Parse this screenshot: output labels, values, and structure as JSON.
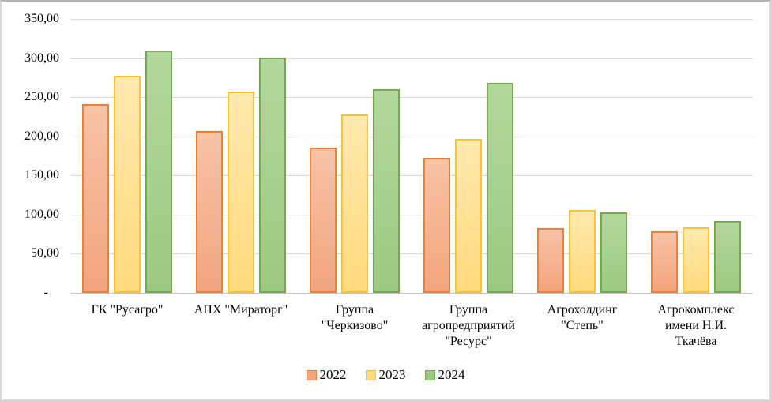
{
  "chart_data": {
    "type": "bar",
    "title": "",
    "xlabel": "",
    "ylabel": "",
    "categories": [
      "ГК \"Русагро\"",
      "АПХ \"Мираторг\"",
      "Группа \"Черкизово\"",
      "Группа агропредприятий \"Ресурс\"",
      "Агрохолдинг \"Степь\"",
      "Агрокомплекс имени Н.И. Ткачёва"
    ],
    "series": [
      {
        "name": "2022",
        "values": [
          241,
          207,
          186,
          172,
          83,
          79
        ],
        "border": "#E8813A",
        "fill_top": "#F8C2A6",
        "fill_bottom": "#F2A57E"
      },
      {
        "name": "2023",
        "values": [
          277,
          257,
          228,
          197,
          106,
          84
        ],
        "border": "#FCC32A",
        "fill_top": "#FFE9AE",
        "fill_bottom": "#FFDA7E"
      },
      {
        "name": "2024",
        "values": [
          310,
          301,
          260,
          268,
          103,
          92
        ],
        "border": "#74AA4F",
        "fill_top": "#B3D79C",
        "fill_bottom": "#9CC981"
      }
    ],
    "ylim": [
      0,
      350
    ],
    "ytick_step": 50,
    "ytick_labels": [
      "-",
      "50,00",
      "100,00",
      "150,00",
      "200,00",
      "250,00",
      "300,00",
      "350,00"
    ],
    "grid": true,
    "legend_position": "bottom",
    "gridline_color": "#d9d9d9"
  }
}
